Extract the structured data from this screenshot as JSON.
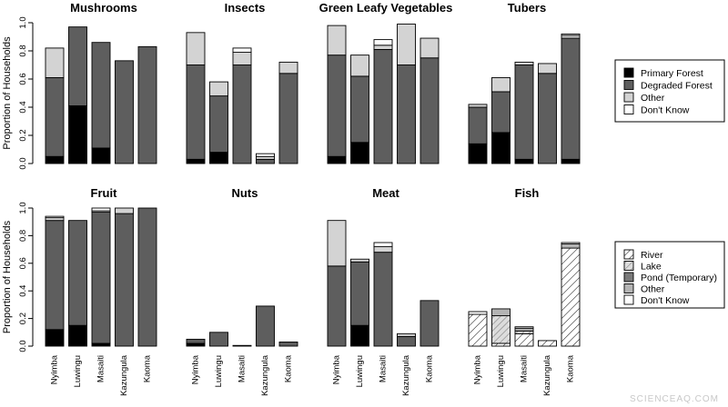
{
  "chart_data": [
    {
      "type": "bar",
      "stacked": true,
      "title": "Mushrooms",
      "ylabel": "Proportion of Households",
      "ylim": [
        0,
        1
      ],
      "yticks": [
        "0.0",
        "0.2",
        "0.4",
        "0.6",
        "0.8",
        "1.0"
      ],
      "categories": [
        "Nyimba",
        "Luwingu",
        "Masaiti",
        "Kazungula",
        "Kaoma"
      ],
      "series": [
        {
          "name": "Primary Forest",
          "values": [
            0.05,
            0.41,
            0.11,
            0.0,
            0.0
          ]
        },
        {
          "name": "Degraded Forest",
          "values": [
            0.56,
            0.56,
            0.75,
            0.73,
            0.83
          ]
        },
        {
          "name": "Other",
          "values": [
            0.21,
            0.0,
            0.0,
            0.0,
            0.0
          ]
        },
        {
          "name": "Don't Know",
          "values": [
            0.0,
            0.0,
            0.0,
            0.0,
            0.0
          ]
        }
      ]
    },
    {
      "type": "bar",
      "stacked": true,
      "title": "Insects",
      "ylim": [
        0,
        1
      ],
      "categories": [
        "Nyimba",
        "Luwingu",
        "Masaiti",
        "Kazungula",
        "Kaoma"
      ],
      "series": [
        {
          "name": "Primary Forest",
          "values": [
            0.03,
            0.08,
            0.0,
            0.0,
            0.0
          ]
        },
        {
          "name": "Degraded Forest",
          "values": [
            0.67,
            0.4,
            0.7,
            0.03,
            0.64
          ]
        },
        {
          "name": "Other",
          "values": [
            0.23,
            0.1,
            0.09,
            0.02,
            0.08
          ]
        },
        {
          "name": "Don't Know",
          "values": [
            0.0,
            0.0,
            0.03,
            0.02,
            0.0
          ]
        }
      ]
    },
    {
      "type": "bar",
      "stacked": true,
      "title": "Green Leafy Vegetables",
      "ylim": [
        0,
        1
      ],
      "categories": [
        "Nyimba",
        "Luwingu",
        "Masaiti",
        "Kazungula",
        "Kaoma"
      ],
      "series": [
        {
          "name": "Primary Forest",
          "values": [
            0.05,
            0.15,
            0.0,
            0.0,
            0.0
          ]
        },
        {
          "name": "Degraded Forest",
          "values": [
            0.72,
            0.47,
            0.81,
            0.7,
            0.75
          ]
        },
        {
          "name": "Other",
          "values": [
            0.21,
            0.15,
            0.03,
            0.29,
            0.14
          ]
        },
        {
          "name": "Don't Know",
          "values": [
            0.0,
            0.0,
            0.04,
            0.0,
            0.0
          ]
        }
      ]
    },
    {
      "type": "bar",
      "stacked": true,
      "title": "Tubers",
      "ylim": [
        0,
        1
      ],
      "categories": [
        "Nyimba",
        "Luwingu",
        "Masaiti",
        "Kazungula",
        "Kaoma"
      ],
      "series": [
        {
          "name": "Primary Forest",
          "values": [
            0.14,
            0.22,
            0.03,
            0.0,
            0.03
          ]
        },
        {
          "name": "Degraded Forest",
          "values": [
            0.26,
            0.29,
            0.67,
            0.64,
            0.86
          ]
        },
        {
          "name": "Other",
          "values": [
            0.02,
            0.1,
            0.02,
            0.07,
            0.02
          ]
        },
        {
          "name": "Don't Know",
          "values": [
            0.0,
            0.0,
            0.0,
            0.0,
            0.01
          ]
        }
      ]
    },
    {
      "type": "bar",
      "stacked": true,
      "title": "Fruit",
      "ylabel": "Proportion of Households",
      "ylim": [
        0,
        1
      ],
      "yticks": [
        "0.0",
        "0.2",
        "0.4",
        "0.6",
        "0.8",
        "1.0"
      ],
      "categories": [
        "Nyimba",
        "Luwingu",
        "Masaiti",
        "Kazungula",
        "Kaoma"
      ],
      "series": [
        {
          "name": "Primary Forest",
          "values": [
            0.12,
            0.15,
            0.02,
            0.0,
            0.0
          ]
        },
        {
          "name": "Degraded Forest",
          "values": [
            0.79,
            0.76,
            0.95,
            0.96,
            1.0
          ]
        },
        {
          "name": "Other",
          "values": [
            0.02,
            0.0,
            0.01,
            0.04,
            0.0
          ]
        },
        {
          "name": "Don't Know",
          "values": [
            0.01,
            0.0,
            0.02,
            0.0,
            0.0
          ]
        }
      ]
    },
    {
      "type": "bar",
      "stacked": true,
      "title": "Nuts",
      "ylim": [
        0,
        1
      ],
      "categories": [
        "Nyimba",
        "Luwingu",
        "Masaiti",
        "Kazungula",
        "Kaoma"
      ],
      "series": [
        {
          "name": "Primary Forest",
          "values": [
            0.02,
            0.0,
            0.0,
            0.0,
            0.0
          ]
        },
        {
          "name": "Degraded Forest",
          "values": [
            0.03,
            0.1,
            0.005,
            0.29,
            0.03
          ]
        },
        {
          "name": "Other",
          "values": [
            0.0,
            0.0,
            0.0,
            0.0,
            0.0
          ]
        },
        {
          "name": "Don't Know",
          "values": [
            0.0,
            0.0,
            0.0,
            0.0,
            0.0
          ]
        }
      ]
    },
    {
      "type": "bar",
      "stacked": true,
      "title": "Meat",
      "ylim": [
        0,
        1
      ],
      "categories": [
        "Nyimba",
        "Luwingu",
        "Masaiti",
        "Kazungula",
        "Kaoma"
      ],
      "series": [
        {
          "name": "Primary Forest",
          "values": [
            0.0,
            0.15,
            0.0,
            0.0,
            0.0
          ]
        },
        {
          "name": "Degraded Forest",
          "values": [
            0.58,
            0.46,
            0.68,
            0.07,
            0.33
          ]
        },
        {
          "name": "Other",
          "values": [
            0.33,
            0.02,
            0.04,
            0.02,
            0.0
          ]
        },
        {
          "name": "Don't Know",
          "values": [
            0.0,
            0.0,
            0.03,
            0.0,
            0.0
          ]
        }
      ]
    },
    {
      "type": "bar",
      "stacked": true,
      "title": "Fish",
      "ylim": [
        0,
        1
      ],
      "categories": [
        "Nyimba",
        "Luwingu",
        "Masaiti",
        "Kazungula",
        "Kaoma"
      ],
      "series": [
        {
          "name": "River",
          "values": [
            0.23,
            0.02,
            0.09,
            0.04,
            0.71
          ]
        },
        {
          "name": "Lake",
          "values": [
            0.0,
            0.2,
            0.02,
            0.0,
            0.0
          ]
        },
        {
          "name": "Pond (Temporary)",
          "values": [
            0.0,
            0.0,
            0.0,
            0.0,
            0.0
          ]
        },
        {
          "name": "Other",
          "values": [
            0.0,
            0.05,
            0.02,
            0.0,
            0.03
          ]
        },
        {
          "name": "Don't Know",
          "values": [
            0.02,
            0.0,
            0.01,
            0.0,
            0.01
          ]
        }
      ]
    }
  ],
  "legends": [
    {
      "entries": [
        {
          "name": "Primary Forest",
          "fill": "#000000"
        },
        {
          "name": "Degraded Forest",
          "fill": "#5e5e5e"
        },
        {
          "name": "Other",
          "fill": "#d3d3d3"
        },
        {
          "name": "Don't Know",
          "fill": "#ffffff"
        }
      ]
    },
    {
      "entries": [
        {
          "name": "River",
          "fill": "hatch"
        },
        {
          "name": "Lake",
          "fill": "hatch-light"
        },
        {
          "name": "Pond (Temporary)",
          "fill": "#7a7a7a"
        },
        {
          "name": "Other",
          "fill": "#b4b4b4"
        },
        {
          "name": "Don't Know",
          "fill": "#ffffff"
        }
      ]
    }
  ],
  "colors": {
    "Primary Forest": "#000000",
    "Degraded Forest": "#5e5e5e",
    "Other": "#d3d3d3",
    "Don't Know": "#ffffff",
    "River": "hatch",
    "Lake": "hatch-light",
    "Pond (Temporary)": "#7a7a7a",
    "Fish Other": "#b4b4b4"
  },
  "watermark": "SCIENCEAQ.COM"
}
